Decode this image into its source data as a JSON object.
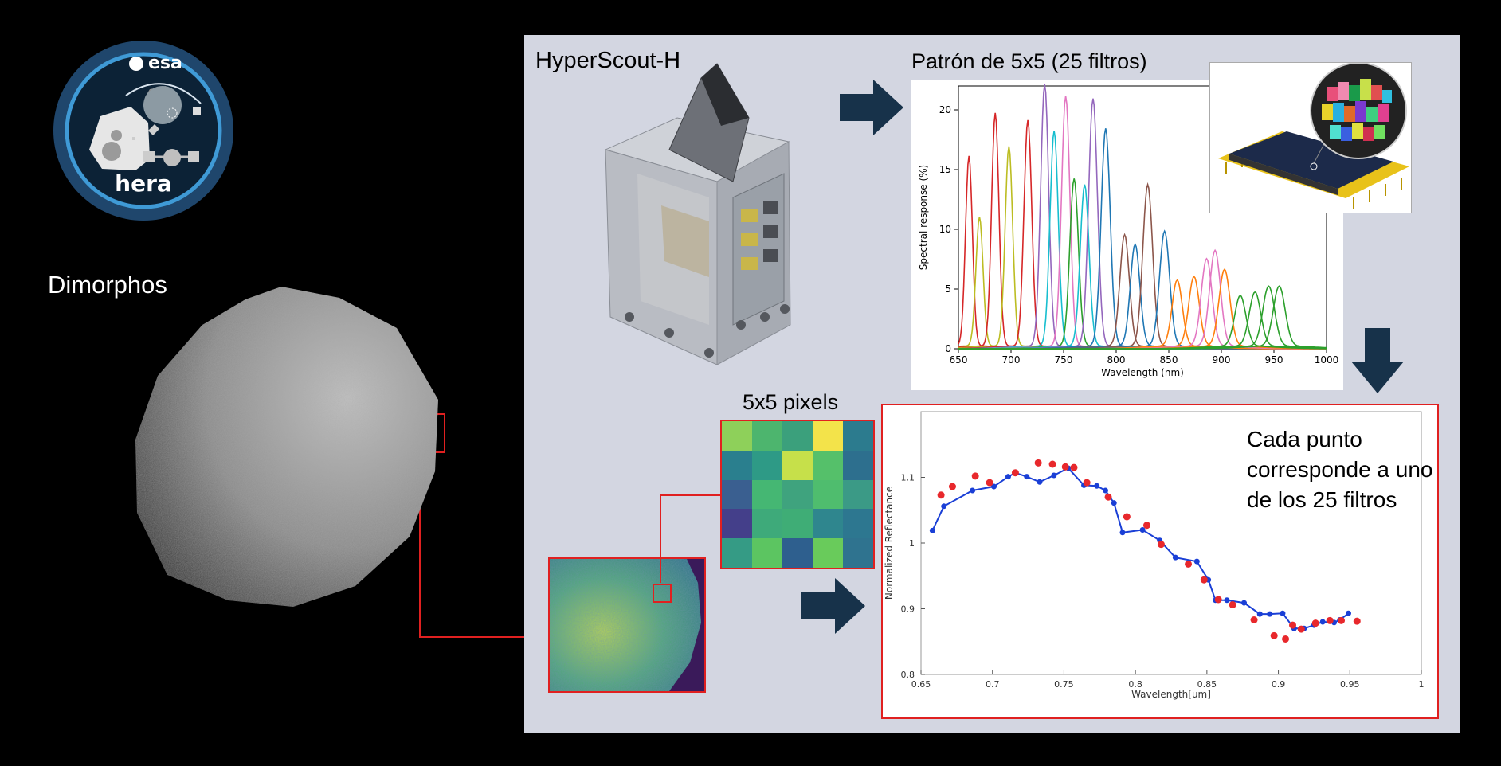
{
  "logo": {
    "agency": "esa",
    "mission": "hera"
  },
  "labels": {
    "dimorphos": "Dimorphos",
    "instrument": "HyperScout-H",
    "pattern": "Patrón de 5x5 (25 filtros)",
    "pixels": "5x5 pixels",
    "annotation": "Cada punto corresponde a uno de los 25 filtros"
  },
  "colors": {
    "panel": "#d3d6e1",
    "arrow": "#17324a",
    "highlight": "#e02020"
  },
  "pixel_grid": [
    [
      "#8ed05a",
      "#4db56e",
      "#3ba07c",
      "#f3e34a",
      "#2c7b8e"
    ],
    [
      "#2a7f8e",
      "#2e9a86",
      "#c6e04a",
      "#55c06a",
      "#2d6f8e"
    ],
    [
      "#3a5f90",
      "#45b773",
      "#3fa37e",
      "#4fbd6e",
      "#3b9a86"
    ],
    [
      "#443f8a",
      "#3eaa7a",
      "#3fad76",
      "#2f868e",
      "#2d7790"
    ],
    [
      "#359b85",
      "#5cc561",
      "#2e5f8e",
      "#69cb5b",
      "#2f738f"
    ]
  ],
  "chart_data": [
    {
      "type": "line",
      "xlabel": "Wavelength (nm)",
      "ylabel": "Spectral response (%)",
      "xlim": [
        650,
        1000
      ],
      "ylim": [
        0,
        22
      ],
      "xticks": [
        650,
        700,
        750,
        800,
        850,
        900,
        950,
        1000
      ],
      "yticks": [
        0,
        5,
        10,
        15,
        20
      ],
      "series_peaks": [
        {
          "x": 660,
          "y": 15.9,
          "color": "#d62728"
        },
        {
          "x": 670,
          "y": 10.8,
          "color": "#bcbd22"
        },
        {
          "x": 685,
          "y": 19.5,
          "color": "#d62728"
        },
        {
          "x": 698,
          "y": 16.7,
          "color": "#bcbd22"
        },
        {
          "x": 716,
          "y": 18.9,
          "color": "#d62728"
        },
        {
          "x": 732,
          "y": 21.9,
          "color": "#9467bd"
        },
        {
          "x": 741,
          "y": 18.0,
          "color": "#17becf"
        },
        {
          "x": 752,
          "y": 20.9,
          "color": "#e377c2"
        },
        {
          "x": 760,
          "y": 14.0,
          "color": "#2ca02c"
        },
        {
          "x": 770,
          "y": 13.5,
          "color": "#17becf"
        },
        {
          "x": 778,
          "y": 20.7,
          "color": "#9467bd"
        },
        {
          "x": 790,
          "y": 18.2,
          "color": "#1f77b4"
        },
        {
          "x": 808,
          "y": 9.3,
          "color": "#8c564b"
        },
        {
          "x": 818,
          "y": 8.5,
          "color": "#1f77b4"
        },
        {
          "x": 830,
          "y": 13.5,
          "color": "#8c564b"
        },
        {
          "x": 846,
          "y": 9.6,
          "color": "#1f77b4"
        },
        {
          "x": 858,
          "y": 5.5,
          "color": "#ff7f0e"
        },
        {
          "x": 874,
          "y": 5.8,
          "color": "#ff7f0e"
        },
        {
          "x": 886,
          "y": 7.3,
          "color": "#e377c2"
        },
        {
          "x": 894,
          "y": 8.0,
          "color": "#e377c2"
        },
        {
          "x": 903,
          "y": 6.4,
          "color": "#ff7f0e"
        },
        {
          "x": 918,
          "y": 4.2,
          "color": "#2ca02c"
        },
        {
          "x": 932,
          "y": 4.5,
          "color": "#2ca02c"
        },
        {
          "x": 945,
          "y": 5.0,
          "color": "#2ca02c"
        },
        {
          "x": 955,
          "y": 5.0,
          "color": "#2ca02c"
        }
      ]
    },
    {
      "type": "scatter",
      "xlabel": "Wavelength[um]",
      "ylabel": "Normalized Reflectance",
      "xlim": [
        0.65,
        1.0
      ],
      "ylim": [
        0.8,
        1.2
      ],
      "xticks": [
        0.65,
        0.7,
        0.75,
        0.8,
        0.85,
        0.9,
        0.95,
        1
      ],
      "yticks": [
        0.8,
        0.9,
        1,
        1.1
      ],
      "series": [
        {
          "name": "",
          "style": "line-markers",
          "color": "#1a3fd6",
          "x": [
            0.658,
            0.666,
            0.686,
            0.701,
            0.711,
            0.716,
            0.724,
            0.733,
            0.743,
            0.753,
            0.764,
            0.773,
            0.779,
            0.785,
            0.791,
            0.805,
            0.817,
            0.828,
            0.843,
            0.851,
            0.856,
            0.864,
            0.876,
            0.887,
            0.894,
            0.903,
            0.911,
            0.918,
            0.925,
            0.931,
            0.939,
            0.943,
            0.949
          ],
          "y": [
            1.019,
            1.056,
            1.08,
            1.086,
            1.101,
            1.107,
            1.101,
            1.093,
            1.103,
            1.114,
            1.088,
            1.087,
            1.08,
            1.061,
            1.016,
            1.02,
            1.004,
            0.978,
            0.972,
            0.944,
            0.913,
            0.913,
            0.909,
            0.892,
            0.892,
            0.893,
            0.87,
            0.87,
            0.875,
            0.88,
            0.879,
            0.883,
            0.893
          ]
        },
        {
          "name": "",
          "style": "markers",
          "color": "#e8282c",
          "x": [
            0.664,
            0.672,
            0.688,
            0.698,
            0.716,
            0.732,
            0.742,
            0.751,
            0.757,
            0.766,
            0.781,
            0.794,
            0.808,
            0.818,
            0.837,
            0.848,
            0.858,
            0.868,
            0.883,
            0.897,
            0.905,
            0.91,
            0.916,
            0.926,
            0.936,
            0.944,
            0.955
          ],
          "y": [
            1.073,
            1.086,
            1.102,
            1.092,
            1.107,
            1.122,
            1.12,
            1.116,
            1.115,
            1.092,
            1.07,
            1.04,
            1.027,
            0.998,
            0.968,
            0.944,
            0.914,
            0.906,
            0.883,
            0.859,
            0.854,
            0.875,
            0.869,
            0.878,
            0.882,
            0.882,
            0.881
          ]
        }
      ]
    }
  ]
}
